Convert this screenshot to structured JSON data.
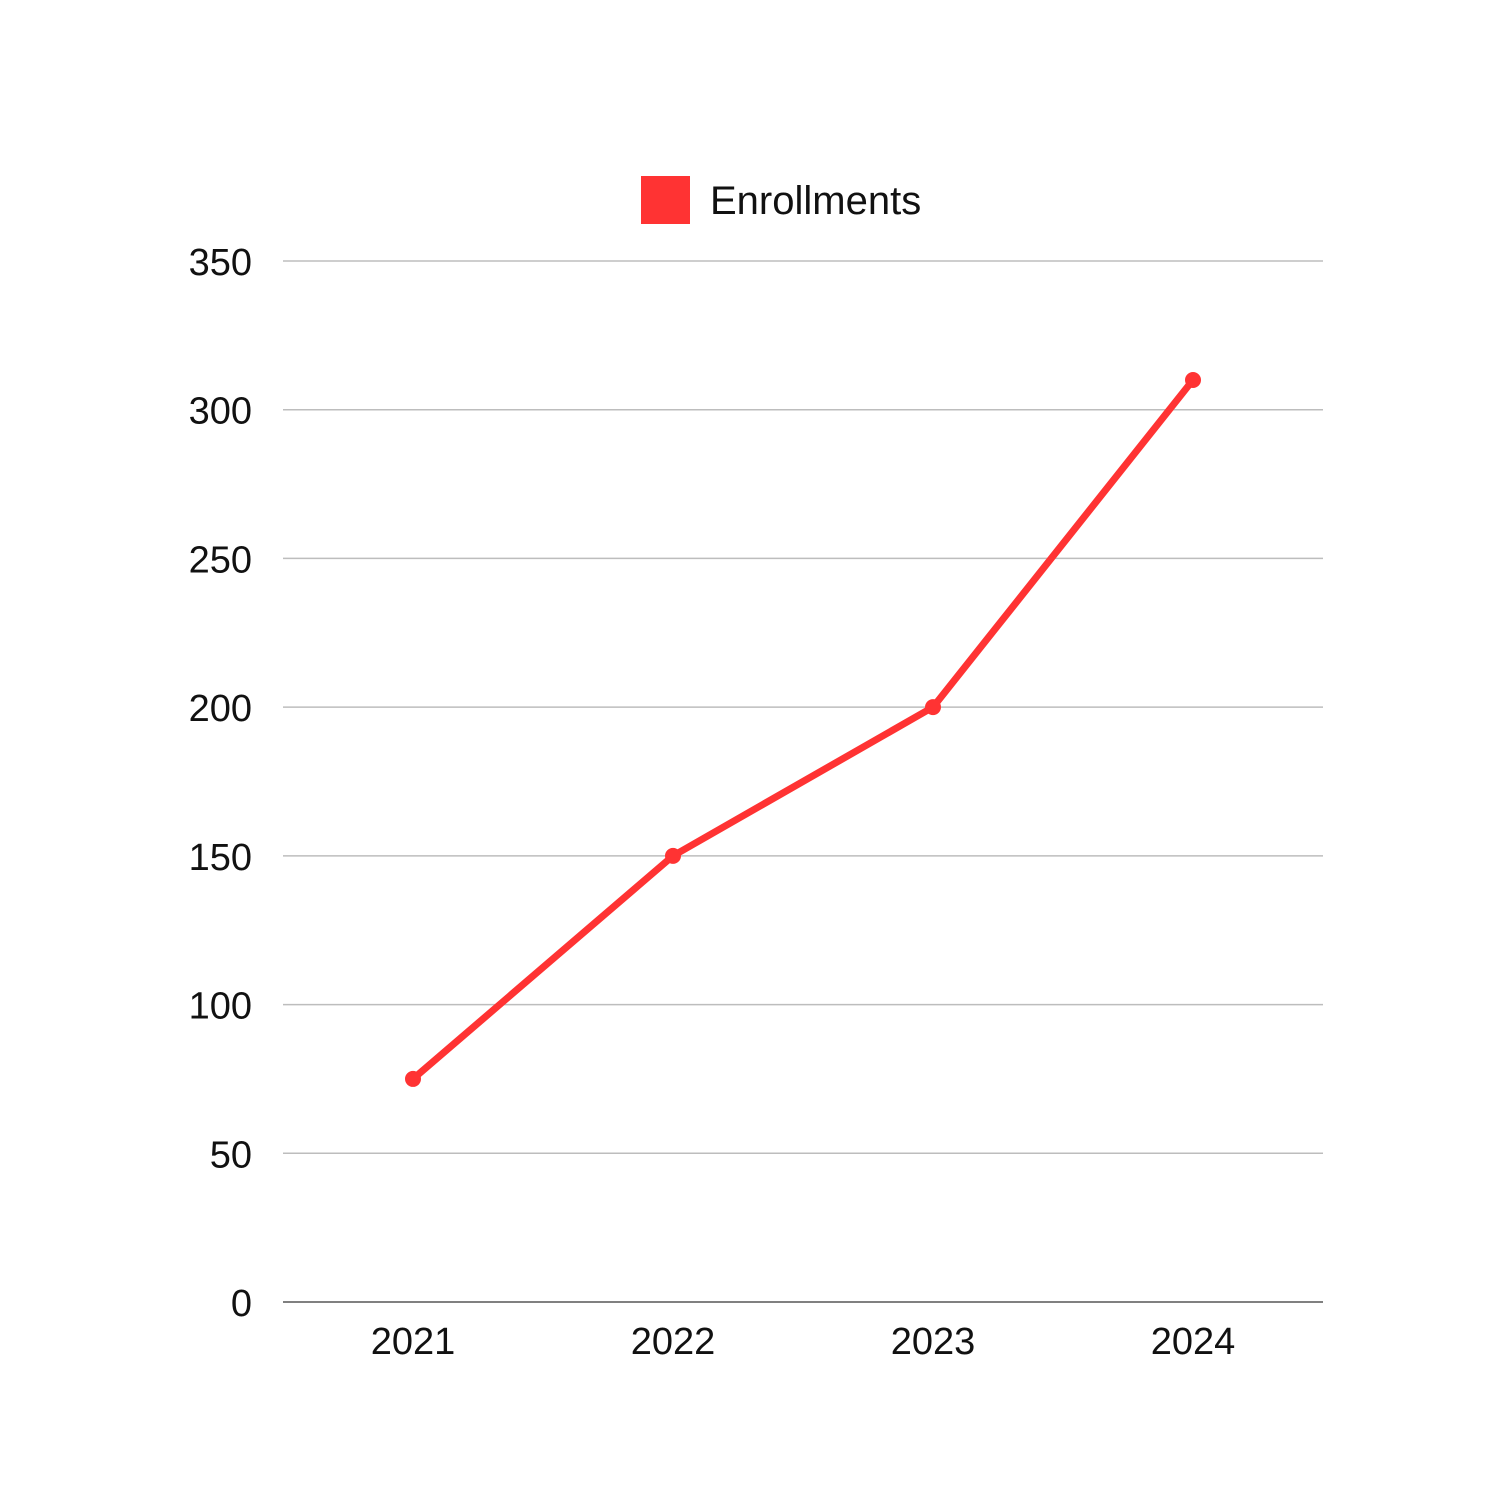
{
  "chart_data": {
    "type": "line",
    "categories": [
      "2021",
      "2022",
      "2023",
      "2024"
    ],
    "series": [
      {
        "name": "Enrollments",
        "values": [
          75,
          150,
          200,
          310
        ],
        "color": "#ff3333"
      }
    ],
    "yticks": [
      0,
      50,
      100,
      150,
      200,
      250,
      300,
      350
    ],
    "ylim": [
      0,
      350
    ],
    "grid": true,
    "legend_position": "top-center",
    "gridline_color": "#bdbdbd",
    "axis_color": "#808080",
    "text_color": "#111111"
  }
}
